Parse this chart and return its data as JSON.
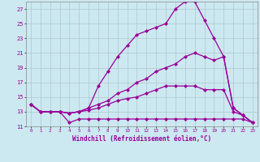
{
  "xlabel": "Windchill (Refroidissement éolien,°C)",
  "background_color": "#cce8f0",
  "grid_color": "#b0c8d0",
  "line_color": "#990099",
  "xlim": [
    -0.5,
    23.5
  ],
  "ylim": [
    11,
    28
  ],
  "xticks": [
    0,
    1,
    2,
    3,
    4,
    5,
    6,
    7,
    8,
    9,
    10,
    11,
    12,
    13,
    14,
    15,
    16,
    17,
    18,
    19,
    20,
    21,
    22,
    23
  ],
  "yticks": [
    11,
    13,
    15,
    17,
    19,
    21,
    23,
    25,
    27
  ],
  "lines": [
    {
      "x": [
        0,
        1,
        2,
        3,
        4,
        5,
        6,
        7,
        8,
        9,
        10,
        11,
        12,
        13,
        14,
        15,
        16,
        17,
        18,
        19,
        20,
        21,
        22,
        23
      ],
      "y": [
        14,
        13,
        13,
        13,
        12.8,
        13.0,
        13.5,
        16.5,
        18.5,
        20.5,
        22.0,
        23.5,
        24.0,
        24.5,
        25.0,
        27.0,
        28.0,
        28.0,
        25.5,
        23.0,
        20.5,
        13.5,
        12.5,
        11.5
      ]
    },
    {
      "x": [
        0,
        1,
        2,
        3,
        4,
        5,
        6,
        7,
        8,
        9,
        10,
        11,
        12,
        13,
        14,
        15,
        16,
        17,
        18,
        19,
        20,
        21,
        22,
        23
      ],
      "y": [
        14,
        13,
        13,
        13,
        12.8,
        13.0,
        13.5,
        14.0,
        14.5,
        15.5,
        16.0,
        17.0,
        17.5,
        18.5,
        19.0,
        19.5,
        20.5,
        21.0,
        20.5,
        20.0,
        20.5,
        13.5,
        12.5,
        11.5
      ]
    },
    {
      "x": [
        0,
        1,
        2,
        3,
        4,
        5,
        6,
        7,
        8,
        9,
        10,
        11,
        12,
        13,
        14,
        15,
        16,
        17,
        18,
        19,
        20,
        21,
        22,
        23
      ],
      "y": [
        14,
        13,
        13,
        13,
        12.8,
        13.0,
        13.2,
        13.5,
        14.0,
        14.5,
        14.8,
        15.0,
        15.5,
        16.0,
        16.5,
        16.5,
        16.5,
        16.5,
        16.0,
        16.0,
        16.0,
        13.0,
        12.5,
        11.5
      ]
    },
    {
      "x": [
        0,
        1,
        2,
        3,
        4,
        5,
        6,
        7,
        8,
        9,
        10,
        11,
        12,
        13,
        14,
        15,
        16,
        17,
        18,
        19,
        20,
        21,
        22,
        23
      ],
      "y": [
        14,
        13,
        13,
        13,
        11.5,
        12.0,
        12.0,
        12.0,
        12.0,
        12.0,
        12.0,
        12.0,
        12.0,
        12.0,
        12.0,
        12.0,
        12.0,
        12.0,
        12.0,
        12.0,
        12.0,
        12.0,
        12.0,
        11.5
      ]
    }
  ],
  "marker": "D",
  "markersize": 2.0,
  "linewidth": 0.9
}
